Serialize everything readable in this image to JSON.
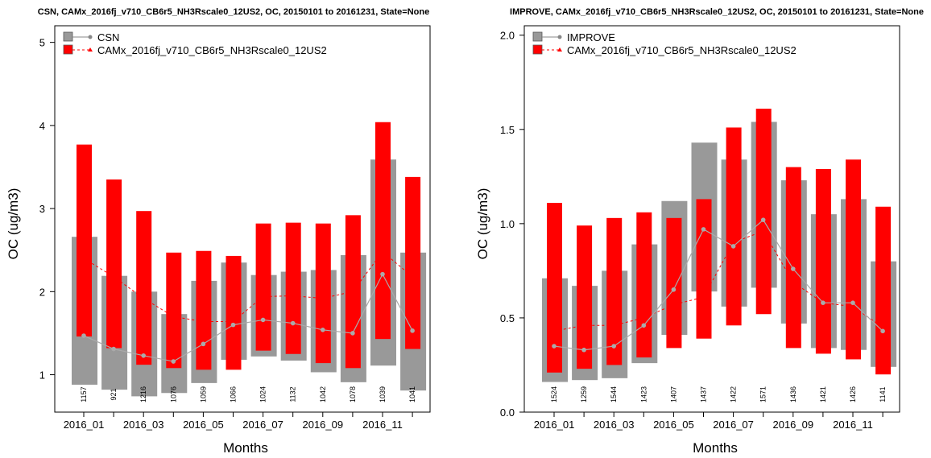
{
  "chart_data": [
    {
      "type": "bar",
      "title": "CSN, CAMx_2016fj_v710_CB6r5_NH3Rscale0_12US2, OC, 20150101 to 20161231, State=None",
      "xlabel": "Months",
      "ylabel": "OC (ug/m3)",
      "ylim": [
        0.55,
        5.2
      ],
      "yticks": [
        1,
        2,
        3,
        4,
        5
      ],
      "ytick_labels": [
        "1",
        "2",
        "3",
        "4",
        "5"
      ],
      "xtick_labels": [
        "2016_01",
        "2016_03",
        "2016_05",
        "2016_07",
        "2016_09",
        "2016_11"
      ],
      "legend_position": "top-left",
      "series": [
        {
          "name": "CSN",
          "color": "#999999",
          "lower": [
            0.88,
            0.82,
            0.74,
            0.78,
            0.9,
            1.18,
            1.22,
            1.17,
            1.03,
            0.91,
            1.11,
            0.81
          ],
          "upper": [
            2.66,
            2.19,
            2.0,
            1.73,
            2.13,
            2.35,
            2.2,
            2.24,
            2.26,
            2.44,
            3.59,
            2.47
          ],
          "median": [
            1.47,
            1.31,
            1.23,
            1.16,
            1.37,
            1.6,
            1.66,
            1.62,
            1.54,
            1.5,
            2.21,
            1.53
          ]
        },
        {
          "name": "CAMx_2016fj_v710_CB6r5_NH3Rscale0_12US2",
          "color": "#ff0000",
          "lower": [
            1.46,
            1.32,
            1.12,
            1.08,
            1.06,
            1.06,
            1.29,
            1.25,
            1.14,
            1.08,
            1.43,
            1.31
          ],
          "upper": [
            3.77,
            3.35,
            2.97,
            2.47,
            2.49,
            2.43,
            2.82,
            2.83,
            2.82,
            2.92,
            4.04,
            3.38
          ],
          "median": [
            2.4,
            2.18,
            1.92,
            1.7,
            1.64,
            1.64,
            1.94,
            1.95,
            1.92,
            2.0,
            2.48,
            2.18
          ]
        }
      ],
      "counts": [
        "1157",
        "921",
        "1216",
        "1076",
        "1059",
        "1066",
        "1024",
        "1132",
        "1042",
        "1078",
        "1039",
        "1041"
      ]
    },
    {
      "type": "bar",
      "title": "IMPROVE, CAMx_2016fj_v710_CB6r5_NH3Rscale0_12US2, OC, 20150101 to 20161231, State=None",
      "xlabel": "Months",
      "ylabel": "OC (ug/m3)",
      "ylim": [
        0,
        2.05
      ],
      "yticks": [
        0,
        0.5,
        1.0,
        1.5,
        2.0
      ],
      "ytick_labels": [
        "0.0",
        "0.5",
        "1.0",
        "1.5",
        "2.0"
      ],
      "xtick_labels": [
        "2016_01",
        "2016_03",
        "2016_05",
        "2016_07",
        "2016_09",
        "2016_11"
      ],
      "legend_position": "top-left",
      "series": [
        {
          "name": "IMPROVE",
          "color": "#999999",
          "lower": [
            0.16,
            0.17,
            0.18,
            0.26,
            0.41,
            0.64,
            0.56,
            0.66,
            0.47,
            0.34,
            0.33,
            0.24
          ],
          "upper": [
            0.71,
            0.67,
            0.75,
            0.89,
            1.12,
            1.43,
            1.34,
            1.54,
            1.23,
            1.05,
            1.13,
            0.8
          ],
          "median": [
            0.35,
            0.33,
            0.35,
            0.46,
            0.65,
            0.97,
            0.88,
            1.02,
            0.76,
            0.58,
            0.58,
            0.43
          ]
        },
        {
          "name": "CAMx_2016fj_v710_CB6r5_NH3Rscale0_12US2",
          "color": "#ff0000",
          "lower": [
            0.21,
            0.23,
            0.25,
            0.29,
            0.34,
            0.39,
            0.46,
            0.52,
            0.34,
            0.31,
            0.28,
            0.2
          ],
          "upper": [
            1.11,
            0.99,
            1.03,
            1.06,
            1.03,
            1.13,
            1.51,
            1.61,
            1.3,
            1.29,
            1.34,
            1.09
          ],
          "median": [
            0.43,
            0.46,
            0.46,
            0.5,
            0.57,
            0.61,
            0.9,
            0.96,
            0.69,
            0.58,
            0.56,
            0.45
          ]
        }
      ],
      "counts": [
        "1524",
        "1259",
        "1544",
        "1423",
        "1407",
        "1437",
        "1422",
        "1571",
        "1436",
        "1421",
        "1426",
        "1141"
      ]
    }
  ]
}
